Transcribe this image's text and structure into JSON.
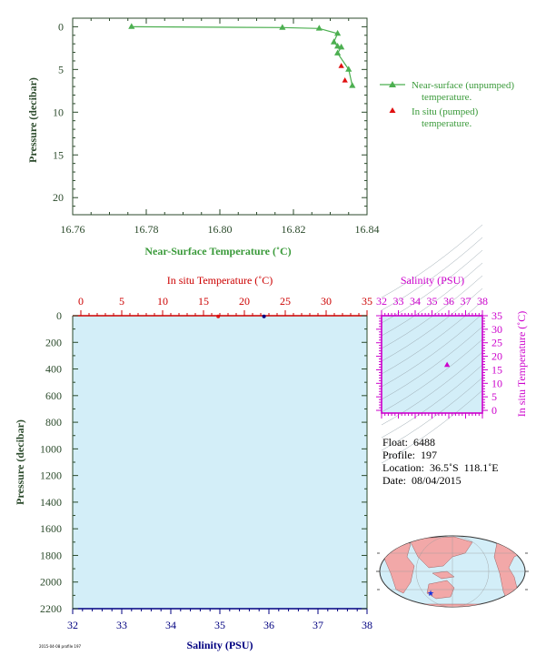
{
  "top_chart": {
    "xlabel": "Near-Surface Temperature (˚C)",
    "ylabel": "Pressure (decibar)",
    "xticks": [
      "16.76",
      "16.78",
      "16.80",
      "16.82",
      "16.84"
    ],
    "yticks": [
      "0",
      "5",
      "10",
      "15",
      "20"
    ],
    "legend_unpumped_1": "Near-surface (unpumped)",
    "legend_unpumped_2": "temperature.",
    "legend_pumped_1": "In situ (pumped)",
    "legend_pumped_2": "temperature."
  },
  "main_chart": {
    "top_axis_label": "In situ Temperature (˚C)",
    "bottom_axis_label": "Salinity (PSU)",
    "ylabel": "Pressure (decibar)",
    "temp_ticks": [
      "0",
      "5",
      "10",
      "15",
      "20",
      "25",
      "30",
      "35"
    ],
    "sal_ticks": [
      "32",
      "33",
      "34",
      "35",
      "36",
      "37",
      "38"
    ],
    "pres_ticks": [
      "0",
      "200",
      "400",
      "600",
      "800",
      "1000",
      "1200",
      "1400",
      "1600",
      "1800",
      "2000",
      "2200"
    ]
  },
  "ts_chart": {
    "top_axis_label": "Salinity (PSU)",
    "right_axis_label": "In situ Temperature (˚C)",
    "sal_ticks": [
      "32",
      "33",
      "34",
      "35",
      "36",
      "37",
      "38"
    ],
    "temp_ticks": [
      "0",
      "5",
      "10",
      "15",
      "20",
      "25",
      "30",
      "35"
    ]
  },
  "info": {
    "float": "Float:  6488",
    "profile": "Profile:  197",
    "location": "Location:  36.5˚S  118.1˚E",
    "date": "Date:  08/04/2015"
  },
  "footnote": "2015-04-08 profile 197",
  "colors": {
    "near_surface": "#4caf50",
    "in_situ": "#e01010",
    "temperature_axis": "#cc0000",
    "salinity_axis": "#000080",
    "ts_axis": "#cc00cc",
    "plot_fill": "#d3eef8"
  },
  "chart_data": [
    {
      "type": "line",
      "series": [
        {
          "name": "Near-surface (unpumped) temperature.",
          "x": [
            16.776,
            16.817,
            16.827,
            16.832,
            16.831,
            16.832,
            16.833,
            16.832,
            16.835,
            16.836
          ],
          "y": [
            0.0,
            0.1,
            0.2,
            0.8,
            1.8,
            2.3,
            2.4,
            3.1,
            5.0,
            6.9
          ]
        },
        {
          "name": "In situ (pumped) temperature.",
          "x": [
            16.833,
            16.834
          ],
          "y": [
            4.6,
            6.3
          ]
        }
      ],
      "xlim": [
        16.76,
        16.84
      ],
      "ylim": [
        22,
        -1
      ],
      "xlabel": "Near-Surface Temperature (˚C)",
      "ylabel": "Pressure (decibar)"
    },
    {
      "type": "scatter",
      "series": [
        {
          "axis": "temperature",
          "x": [
            16.8
          ],
          "y": [
            5
          ]
        },
        {
          "axis": "salinity",
          "x": [
            35.9
          ],
          "y": [
            5
          ]
        }
      ],
      "temperature_range": [
        -1,
        35
      ],
      "salinity_range": [
        32,
        38
      ],
      "ylim": [
        2200,
        0
      ],
      "xlabel": "Salinity (PSU)",
      "top_xlabel": "In situ Temperature (˚C)",
      "ylabel": "Pressure (decibar)"
    },
    {
      "type": "scatter",
      "x": [
        35.9
      ],
      "y": [
        16.8
      ],
      "xlim": [
        32,
        38
      ],
      "ylim": [
        -1,
        35
      ],
      "xlabel": "Salinity (PSU)",
      "ylabel": "In situ Temperature (˚C)"
    }
  ]
}
